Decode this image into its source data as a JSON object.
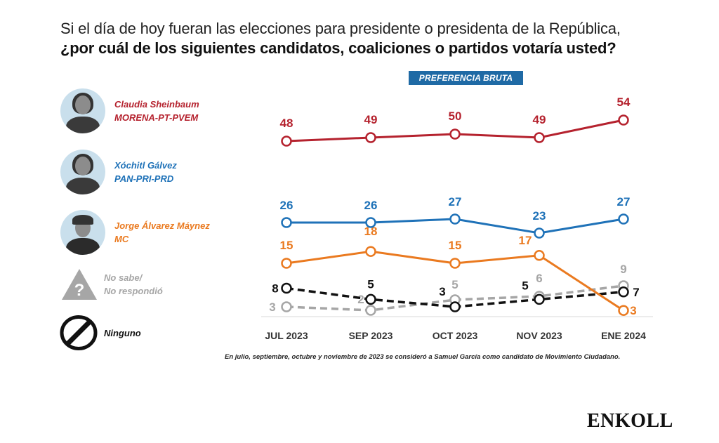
{
  "question": {
    "line1": "Si el día de hoy fueran las elecciones para presidente o presidenta de la República,",
    "line2": "¿por cuál de los siguientes candidatos, coaliciones o partidos votaría usted?"
  },
  "badge": "PREFERENCIA BRUTA",
  "legend": [
    {
      "name": "Claudia Sheinbaum",
      "party": "MORENA-PT-PVEM",
      "color": "#b5222e",
      "icon": "avatar-photo"
    },
    {
      "name": "Xóchitl Gálvez",
      "party": "PAN-PRI-PRD",
      "color": "#1f72b8",
      "icon": "avatar-photo"
    },
    {
      "name": "Jorge Álvarez Máynez",
      "party": "MC",
      "color": "#ea7a20",
      "icon": "avatar-photo"
    },
    {
      "name": "No sabe/",
      "party": "No respondió",
      "color": "#a6a6a6",
      "icon": "question-triangle-icon"
    },
    {
      "name": "Ninguno",
      "party": "",
      "color": "#111111",
      "icon": "prohibited-icon"
    }
  ],
  "footnote": "En julio, septiembre, octubre y noviembre de 2023 se consideró a Samuel García como candidato de Movimiento Ciudadano.",
  "brand": "ENKOLL",
  "chart_data": {
    "type": "line",
    "title": "PREFERENCIA BRUTA",
    "categories": [
      "JUL 2023",
      "SEP 2023",
      "OCT 2023",
      "NOV 2023",
      "ENE 2024"
    ],
    "xlabel": "",
    "ylabel": "",
    "ylim": [
      0,
      60
    ],
    "grid": false,
    "legend_position": "left",
    "series": [
      {
        "name": "Claudia Sheinbaum (MORENA-PT-PVEM)",
        "color": "#b5222e",
        "dashed": false,
        "values": [
          48,
          49,
          50,
          49,
          54
        ]
      },
      {
        "name": "Xóchitl Gálvez (PAN-PRI-PRD)",
        "color": "#1f72b8",
        "dashed": false,
        "values": [
          26,
          26,
          27,
          23,
          27
        ]
      },
      {
        "name": "Jorge Álvarez Máynez (MC)",
        "color": "#ea7a20",
        "dashed": false,
        "values": [
          15,
          18,
          15,
          17,
          3
        ]
      },
      {
        "name": "Ninguno",
        "color": "#111111",
        "dashed": true,
        "values": [
          8,
          5,
          3,
          5,
          7
        ]
      },
      {
        "name": "No sabe/No respondió",
        "color": "#a6a6a6",
        "dashed": true,
        "values": [
          3,
          2,
          5,
          6,
          9
        ]
      }
    ]
  }
}
